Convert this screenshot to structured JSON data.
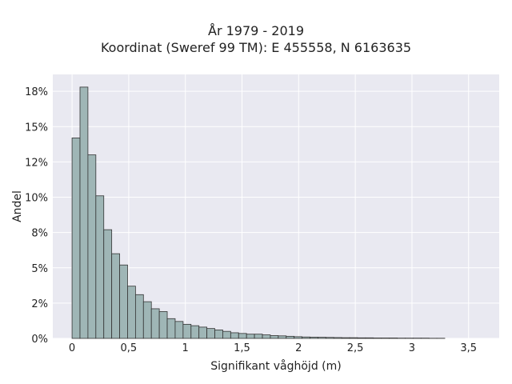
{
  "colors": {
    "plot_background": "#e9e9f1",
    "bar_fill": "#9fb6b6",
    "bar_edge": "#333333",
    "grid": "#ffffff"
  },
  "chart_data": {
    "type": "bar",
    "title_lines": [
      "År 1979 - 2019",
      "Koordinat (Sweref 99 TM): E 455558, N 6163635"
    ],
    "xlabel": "Signifikant våghöjd (m)",
    "ylabel": "Andel",
    "xlim": [
      -0.17,
      3.77
    ],
    "ylim": [
      0,
      0.187
    ],
    "x_ticks": [
      0,
      0.5,
      1,
      1.5,
      2,
      2.5,
      3,
      3.5
    ],
    "x_tick_labels": [
      "0",
      "0,5",
      "1",
      "1,5",
      "2",
      "2,5",
      "3",
      "3,5"
    ],
    "y_ticks": [
      0,
      0.025,
      0.05,
      0.075,
      0.1,
      0.125,
      0.15,
      0.175
    ],
    "y_tick_labels": [
      "0%",
      "2%",
      "5%",
      "8%",
      "10%",
      "12%",
      "15%",
      "18%"
    ],
    "bin_start": 0,
    "bin_width": 0.07,
    "values": [
      0.142,
      0.178,
      0.13,
      0.101,
      0.077,
      0.06,
      0.052,
      0.037,
      0.031,
      0.026,
      0.021,
      0.019,
      0.014,
      0.012,
      0.01,
      0.009,
      0.008,
      0.007,
      0.006,
      0.005,
      0.004,
      0.0035,
      0.003,
      0.003,
      0.0025,
      0.002,
      0.0018,
      0.0015,
      0.0012,
      0.001,
      0.0009,
      0.0008,
      0.0007,
      0.0006,
      0.0005,
      0.0005,
      0.0004,
      0.0004,
      0.0003,
      0.0003,
      0.0003,
      0.0002,
      0.0002,
      0.0002,
      0.0002,
      0.0001,
      0.0001
    ],
    "grid": true,
    "legend": "none"
  }
}
